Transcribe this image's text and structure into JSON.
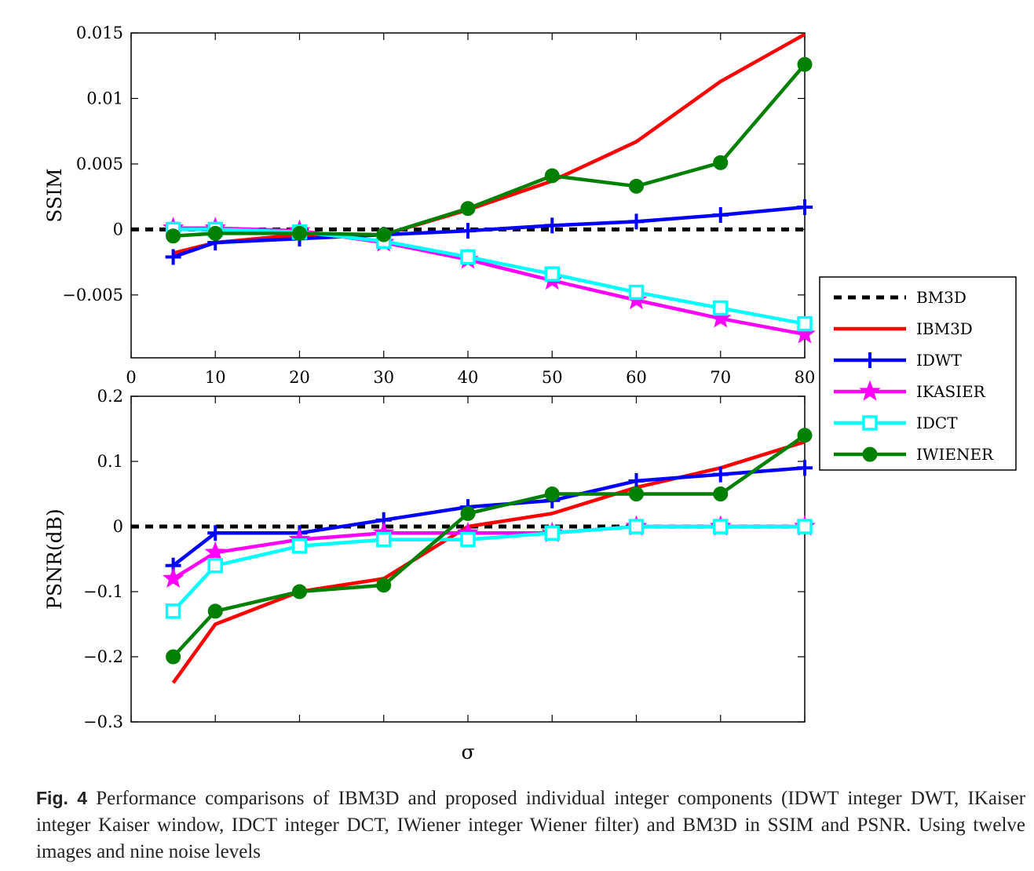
{
  "chart_data": [
    {
      "type": "line",
      "panel": "top",
      "ylabel": "SSIM",
      "xlabel": "",
      "xlim": [
        0,
        80
      ],
      "ylim": [
        -0.0098,
        0.015
      ],
      "xticks": [
        0,
        10,
        20,
        30,
        40,
        50,
        60,
        70,
        80
      ],
      "xtick_labels": [
        "0",
        "10",
        "20",
        "30",
        "40",
        "50",
        "60",
        "70",
        "80"
      ],
      "yticks": [
        0.015,
        0.01,
        0.005,
        0,
        -0.005
      ],
      "ytick_labels": [
        "0.015",
        "0.01",
        "0.005",
        "0",
        "−0.005"
      ],
      "grid": false,
      "series": [
        {
          "name": "BM3D",
          "x": [
            0,
            80
          ],
          "values": [
            0,
            0
          ]
        },
        {
          "name": "IBM3D",
          "x": [
            5,
            10,
            20,
            30,
            40,
            50,
            60,
            70,
            80
          ],
          "values": [
            -0.0018,
            -0.001,
            -0.0004,
            -0.0004,
            0.0015,
            0.0037,
            0.0067,
            0.0113,
            0.0149
          ]
        },
        {
          "name": "IDWT",
          "x": [
            5,
            10,
            20,
            30,
            40,
            50,
            60,
            70,
            80
          ],
          "values": [
            -0.0021,
            -0.001,
            -0.0007,
            -0.0004,
            -0.0001,
            0.0003,
            0.0006,
            0.0011,
            0.0017
          ]
        },
        {
          "name": "IKASIER",
          "x": [
            5,
            10,
            20,
            30,
            40,
            50,
            60,
            70,
            80
          ],
          "values": [
            0.0001,
            0.0001,
            -0.0001,
            -0.001,
            -0.0023,
            -0.0039,
            -0.0054,
            -0.0068,
            -0.008
          ]
        },
        {
          "name": "IDCT",
          "x": [
            5,
            10,
            20,
            30,
            40,
            50,
            60,
            70,
            80
          ],
          "values": [
            0.0,
            0.0,
            -0.0002,
            -0.0009,
            -0.0021,
            -0.0034,
            -0.0048,
            -0.006,
            -0.0072
          ]
        },
        {
          "name": "IWIENER",
          "x": [
            5,
            10,
            20,
            30,
            40,
            50,
            60,
            70,
            80
          ],
          "values": [
            -0.0005,
            -0.0003,
            -0.0003,
            -0.0004,
            0.0016,
            0.0041,
            0.0033,
            0.0051,
            0.0126
          ]
        }
      ]
    },
    {
      "type": "line",
      "panel": "bottom",
      "ylabel": "PSNR(dB)",
      "xlabel": "σ",
      "xlim": [
        0,
        80
      ],
      "ylim": [
        -0.3,
        0.2
      ],
      "yticks": [
        0.2,
        0.1,
        0,
        -0.1,
        -0.2,
        -0.3
      ],
      "ytick_labels": [
        "0.2",
        "0.1",
        "0",
        "−0.1",
        "−0.2",
        "−0.3"
      ],
      "grid": false,
      "series": [
        {
          "name": "BM3D",
          "x": [
            0,
            80
          ],
          "values": [
            0,
            0
          ]
        },
        {
          "name": "IBM3D",
          "x": [
            5,
            10,
            20,
            30,
            40,
            50,
            60,
            70,
            80
          ],
          "values": [
            -0.24,
            -0.15,
            -0.1,
            -0.08,
            0.0,
            0.02,
            0.06,
            0.09,
            0.13
          ]
        },
        {
          "name": "IDWT",
          "x": [
            5,
            10,
            20,
            30,
            40,
            50,
            60,
            70,
            80
          ],
          "values": [
            -0.06,
            -0.01,
            -0.01,
            0.01,
            0.03,
            0.04,
            0.07,
            0.08,
            0.09
          ]
        },
        {
          "name": "IKASIER",
          "x": [
            5,
            10,
            20,
            30,
            40,
            50,
            60,
            70,
            80
          ],
          "values": [
            -0.08,
            -0.04,
            -0.02,
            -0.01,
            -0.01,
            -0.01,
            0.0,
            0.0,
            0.0
          ]
        },
        {
          "name": "IDCT",
          "x": [
            5,
            10,
            20,
            30,
            40,
            50,
            60,
            70,
            80
          ],
          "values": [
            -0.13,
            -0.06,
            -0.03,
            -0.02,
            -0.02,
            -0.01,
            0.0,
            0.0,
            0.0
          ]
        },
        {
          "name": "IWIENER",
          "x": [
            5,
            10,
            20,
            30,
            40,
            50,
            60,
            70,
            80
          ],
          "values": [
            -0.2,
            -0.13,
            -0.1,
            -0.09,
            0.02,
            0.05,
            0.05,
            0.05,
            0.14
          ]
        }
      ]
    }
  ],
  "series_style": {
    "BM3D": {
      "color": "#000000",
      "dash": true,
      "marker": "none"
    },
    "IBM3D": {
      "color": "#ff0000",
      "dash": false,
      "marker": "none"
    },
    "IDWT": {
      "color": "#0000ff",
      "dash": false,
      "marker": "plus"
    },
    "IKASIER": {
      "color": "#ff00ff",
      "dash": false,
      "marker": "star"
    },
    "IDCT": {
      "color": "#00ffff",
      "dash": false,
      "marker": "square"
    },
    "IWIENER": {
      "color": "#008000",
      "dash": false,
      "marker": "circle"
    }
  },
  "legend": {
    "placement": "right, between panels",
    "entries": [
      "BM3D",
      "IBM3D",
      "IDWT",
      "IKASIER",
      "IDCT",
      "IWIENER"
    ]
  },
  "caption": {
    "label": "Fig. 4",
    "text": "Performance comparisons of IBM3D and proposed individual integer components (IDWT integer DWT, IKaiser integer Kaiser window, IDCT integer DCT, IWiener integer Wiener filter) and BM3D in SSIM and PSNR. Using twelve images and nine noise levels"
  }
}
